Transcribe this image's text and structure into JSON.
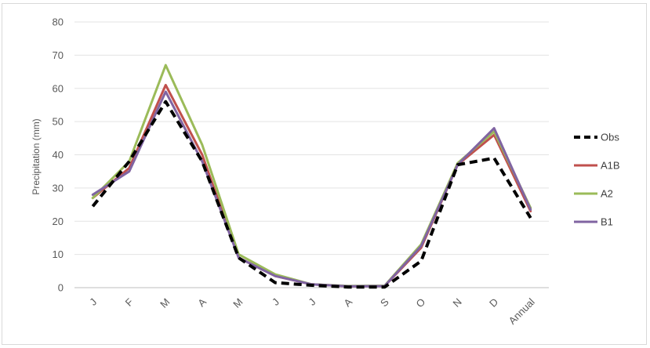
{
  "chart_data": {
    "type": "line",
    "title": "",
    "xlabel": "",
    "ylabel": "Precipitation (mm)",
    "ylim": [
      0,
      80
    ],
    "yticks": [
      0,
      10,
      20,
      30,
      40,
      50,
      60,
      70,
      80
    ],
    "grid": true,
    "legend_position": "right",
    "categories": [
      "J",
      "F",
      "M",
      "A",
      "M",
      "J",
      "J",
      "A",
      "S",
      "O",
      "N",
      "D",
      "Annual"
    ],
    "series": [
      {
        "name": "Obs",
        "color": "#000000",
        "dash": "dashed",
        "values": [
          24.5,
          38,
          56,
          38,
          9,
          1.5,
          0.7,
          0.2,
          0.2,
          8,
          37,
          39,
          21
        ]
      },
      {
        "name": "A1B",
        "color": "#c0504d",
        "dash": "solid",
        "values": [
          27,
          36,
          61,
          40,
          9,
          3.5,
          1,
          0.4,
          0.5,
          12,
          37,
          46,
          23
        ]
      },
      {
        "name": "A2",
        "color": "#9bbb59",
        "dash": "solid",
        "values": [
          27,
          38,
          67,
          43,
          10,
          4,
          1,
          0.5,
          0.6,
          13,
          37.5,
          47,
          24
        ]
      },
      {
        "name": "B1",
        "color": "#8064a2",
        "dash": "solid",
        "values": [
          28,
          35,
          59,
          38,
          9,
          3.5,
          1,
          0.4,
          0.5,
          12.5,
          37,
          48,
          23.5
        ]
      }
    ]
  }
}
